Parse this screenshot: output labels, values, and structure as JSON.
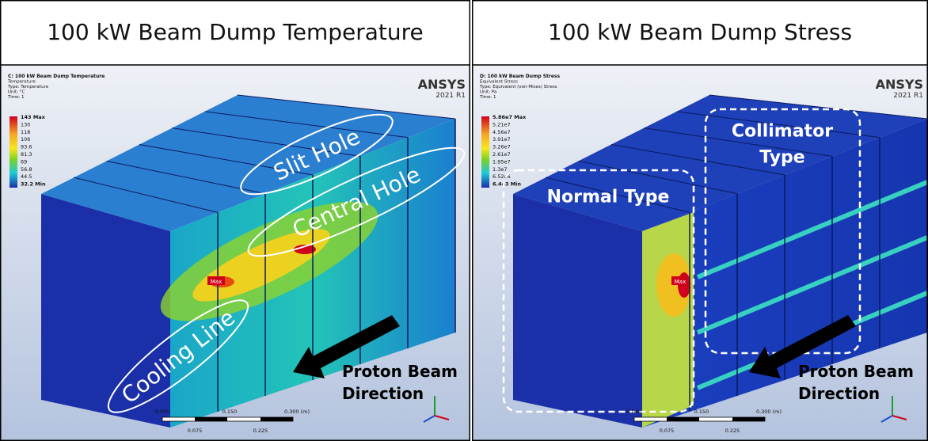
{
  "panels": [
    {
      "title": "100 kW Beam Dump Temperature",
      "info": [
        "C: 100 kW Beam Dump Temperature",
        "Temperature",
        "Type: Temperature",
        "Unit: °C",
        "Time: 1"
      ],
      "legend": [
        "143 Max",
        "130",
        "118",
        "106",
        "93.6",
        "81.3",
        "69",
        "56.8",
        "44.5",
        "32.2 Min"
      ],
      "logo": {
        "brand": "ANSYS",
        "version": "2021 R1"
      },
      "annotations": [
        "Slit Hole",
        "Central Hole",
        "Cooling Line"
      ],
      "max_label": "Max",
      "arrow_label": [
        "Proton Beam",
        "Direction"
      ],
      "scale": {
        "top": [
          "0.000",
          "0.150",
          "0.300 (m)"
        ],
        "bottom": [
          "0.075",
          "0.225"
        ]
      }
    },
    {
      "title": "100 kW Beam Dump Stress",
      "info": [
        "D: 100 kW Beam Dump Stress",
        "Equivalent Stress",
        "Type: Equivalent (von-Mises) Stress",
        "Unit: Pa",
        "Time: 1"
      ],
      "legend": [
        "5.86e7 Max",
        "5.21e7",
        "4.56e7",
        "3.91e7",
        "3.26e7",
        "2.61e7",
        "1.95e7",
        "1.3e7",
        "6.52e6",
        "6.4e3 Min"
      ],
      "logo": {
        "brand": "ANSYS",
        "version": "2021 R1"
      },
      "annotations": [
        "Collimator",
        "Type",
        "Normal Type"
      ],
      "max_label": "Max",
      "arrow_label": [
        "Proton Beam",
        "Direction"
      ],
      "scale": {
        "top": [
          "0.000",
          "0.150",
          "0.300 (m)"
        ],
        "bottom": [
          "0.075",
          "0.225"
        ]
      }
    }
  ]
}
